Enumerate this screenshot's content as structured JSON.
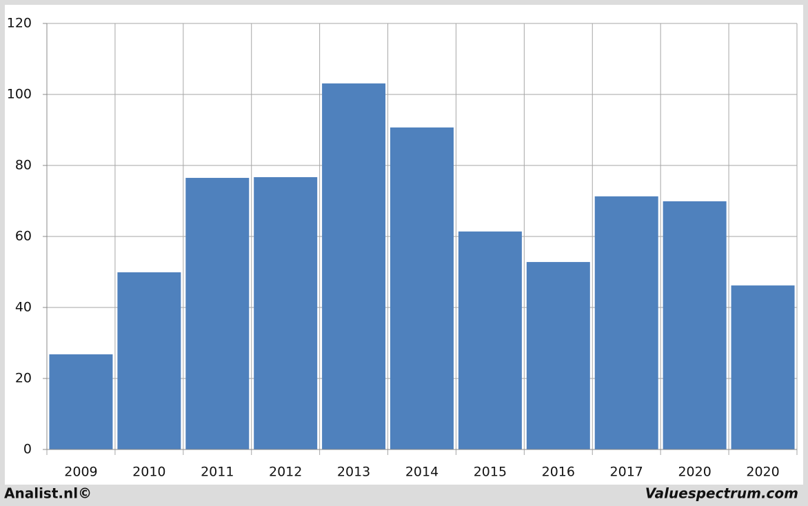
{
  "chart_data": {
    "type": "bar",
    "categories": [
      "2009",
      "2010",
      "2011",
      "2012",
      "2013",
      "2014",
      "2015",
      "2016",
      "2017",
      "2020",
      "2020"
    ],
    "values": [
      26.8,
      49.9,
      76.5,
      76.7,
      103.1,
      90.7,
      61.4,
      52.8,
      71.3,
      69.9,
      46.2
    ],
    "color": "#4f81bd",
    "ylim": [
      0,
      120
    ],
    "yticks": [
      0,
      20,
      40,
      60,
      80,
      100,
      120
    ],
    "grid": true
  },
  "footer": {
    "left": "Analist.nl©",
    "right": "Valuespectrum.com"
  }
}
